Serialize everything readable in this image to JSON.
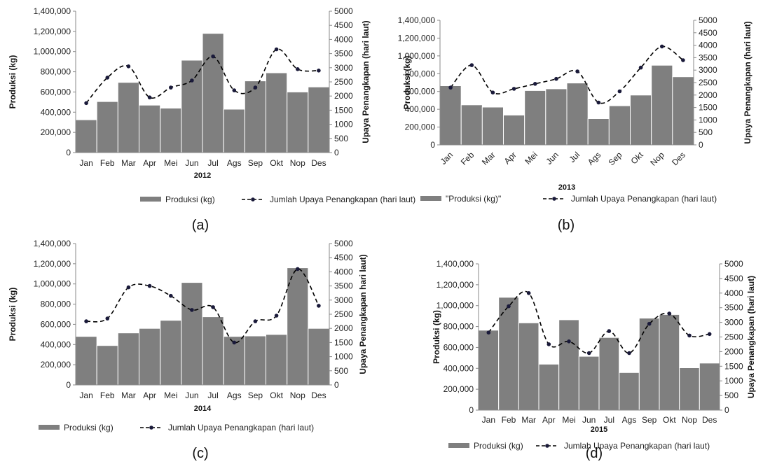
{
  "chart_data": [
    {
      "type": "bar",
      "panel_caption": "(a)",
      "xlabel": "2012",
      "ylabel": "Produksi (kg)",
      "y2label": "Upaya Penangkapan (hari laut)",
      "ylim": [
        0,
        1400000
      ],
      "y2lim": [
        0,
        5000
      ],
      "yticks": [
        "0",
        "200,000",
        "400,000",
        "600,000",
        "800,000",
        "1,000,000",
        "1,200,000",
        "1,400,000"
      ],
      "y2ticks": [
        "0",
        "500",
        "1000",
        "1500",
        "2000",
        "2500",
        "3000",
        "3500",
        "4000",
        "4500",
        "5000"
      ],
      "categories": [
        "Jan",
        "Feb",
        "Mar",
        "Apr",
        "Mei",
        "Jun",
        "Jul",
        "Ags",
        "Sep",
        "Okt",
        "Nop",
        "Des"
      ],
      "legend_bar": "Produksi (kg)",
      "legend_line": "Jumlah Upaya Penangkapan (hari laut)",
      "series": [
        {
          "name": "Produksi (kg)",
          "type": "bar",
          "axis": "left",
          "values": [
            325000,
            505000,
            695000,
            470000,
            440000,
            915000,
            1180000,
            430000,
            710000,
            790000,
            600000,
            650000
          ]
        },
        {
          "name": "Jumlah Upaya Penangkapan (hari laut)",
          "type": "line",
          "axis": "right",
          "values": [
            1750,
            2650,
            3050,
            1950,
            2300,
            2550,
            3400,
            2200,
            2300,
            3650,
            2950,
            2900
          ]
        }
      ],
      "legend_position": "bottom",
      "grid": false
    },
    {
      "type": "bar",
      "panel_caption": "(b)",
      "xlabel": "2013",
      "ylabel": "Produksi (kg)",
      "y2label": "Upaya Penangkapan (hari laut)",
      "ylim": [
        0,
        1400000
      ],
      "y2lim": [
        0,
        5000
      ],
      "yticks": [
        "0",
        "200,000",
        "400,000",
        "600,000",
        "800,000",
        "1,000,000",
        "1,200,000",
        "1,400,000"
      ],
      "y2ticks": [
        "0",
        "500",
        "1000",
        "1500",
        "2000",
        "2500",
        "3000",
        "3500",
        "4000",
        "4500",
        "5000"
      ],
      "categories": [
        "Jan",
        "Feb",
        "Mar",
        "Apr",
        "Mei",
        "Jun",
        "Jul",
        "Ags",
        "Sep",
        "Okt",
        "Nop",
        "Des"
      ],
      "legend_bar": "\"Produksi (kg)\"",
      "legend_line": "Jumlah Upaya Penangkapan (hari laut)",
      "series": [
        {
          "name": "\"Produksi (kg)\"",
          "type": "bar",
          "axis": "left",
          "values": [
            665000,
            450000,
            425000,
            335000,
            610000,
            630000,
            695000,
            295000,
            440000,
            560000,
            895000,
            765000
          ]
        },
        {
          "name": "Jumlah Upaya Penangkapan (hari laut)",
          "type": "line",
          "axis": "right",
          "values": [
            2300,
            3200,
            2100,
            2250,
            2450,
            2650,
            2950,
            1700,
            2150,
            3100,
            3950,
            3400
          ]
        }
      ],
      "legend_position": "bottom",
      "grid": false
    },
    {
      "type": "bar",
      "panel_caption": "(c)",
      "xlabel": "2014",
      "ylabel": "Produksi (kg)",
      "y2label": "Upaya Penangkapan hari laut)",
      "ylim": [
        0,
        1400000
      ],
      "y2lim": [
        0,
        5000
      ],
      "yticks": [
        "0",
        "200,000",
        "400,000",
        "600,000",
        "800,000",
        "1,000,000",
        "1,200,000",
        "1,400,000"
      ],
      "y2ticks": [
        "0",
        "500",
        "1000",
        "1500",
        "2000",
        "2500",
        "3000",
        "3500",
        "4000",
        "4500",
        "5000"
      ],
      "categories": [
        "Jan",
        "Feb",
        "Mar",
        "Apr",
        "Mei",
        "Jun",
        "Jul",
        "Ags",
        "Sep",
        "Okt",
        "Nop",
        "Des"
      ],
      "legend_bar": "Produksi (kg)",
      "legend_line": "Jumlah Upaya Penangkapan (hari laut)",
      "series": [
        {
          "name": "Produksi (kg)",
          "type": "bar",
          "axis": "left",
          "values": [
            480000,
            390000,
            515000,
            560000,
            640000,
            1015000,
            675000,
            480000,
            485000,
            500000,
            1160000,
            560000
          ]
        },
        {
          "name": "Jumlah Upaya Penangkapan (hari laut)",
          "type": "line",
          "axis": "right",
          "values": [
            2250,
            2350,
            3450,
            3500,
            3150,
            2650,
            2750,
            1500,
            2250,
            2450,
            4100,
            2800
          ]
        }
      ],
      "legend_position": "bottom",
      "grid": false
    },
    {
      "type": "bar",
      "panel_caption": "(d)",
      "xlabel": "2015",
      "ylabel": "Produksi (kg)",
      "y2label": "Upaya Penangkapan (hari laut)",
      "ylim": [
        0,
        1400000
      ],
      "y2lim": [
        0,
        5000
      ],
      "yticks": [
        "0",
        "200,000",
        "400,000",
        "600,000",
        "800,000",
        "1,000,000",
        "1,200,000",
        "1,400,000"
      ],
      "y2ticks": [
        "0",
        "500",
        "1000",
        "1500",
        "2000",
        "2500",
        "3000",
        "3500",
        "4000",
        "4500",
        "5000"
      ],
      "categories": [
        "Jan",
        "Feb",
        "Mar",
        "Apr",
        "Mei",
        "Jun",
        "Jul",
        "Ags",
        "Sep",
        "Okt",
        "Nop",
        "Des"
      ],
      "legend_bar": "Produksi (kg)",
      "legend_line": "Jumlah Upaya Penangkapan (hari laut)",
      "series": [
        {
          "name": "Produksi (kg)",
          "type": "bar",
          "axis": "left",
          "values": [
            765000,
            1080000,
            835000,
            440000,
            865000,
            515000,
            695000,
            360000,
            880000,
            915000,
            405000,
            450000
          ]
        },
        {
          "name": "Jumlah Upaya Penangkapan (hari laut)",
          "type": "line",
          "axis": "right",
          "values": [
            2650,
            3550,
            4000,
            2250,
            2350,
            1950,
            2700,
            1950,
            2950,
            3300,
            2550,
            2600
          ]
        }
      ],
      "legend_position": "bottom",
      "grid": false
    }
  ],
  "colors": {
    "bar": "#7f7f7f",
    "line": "#000000",
    "marker": "#1a1a3a"
  }
}
